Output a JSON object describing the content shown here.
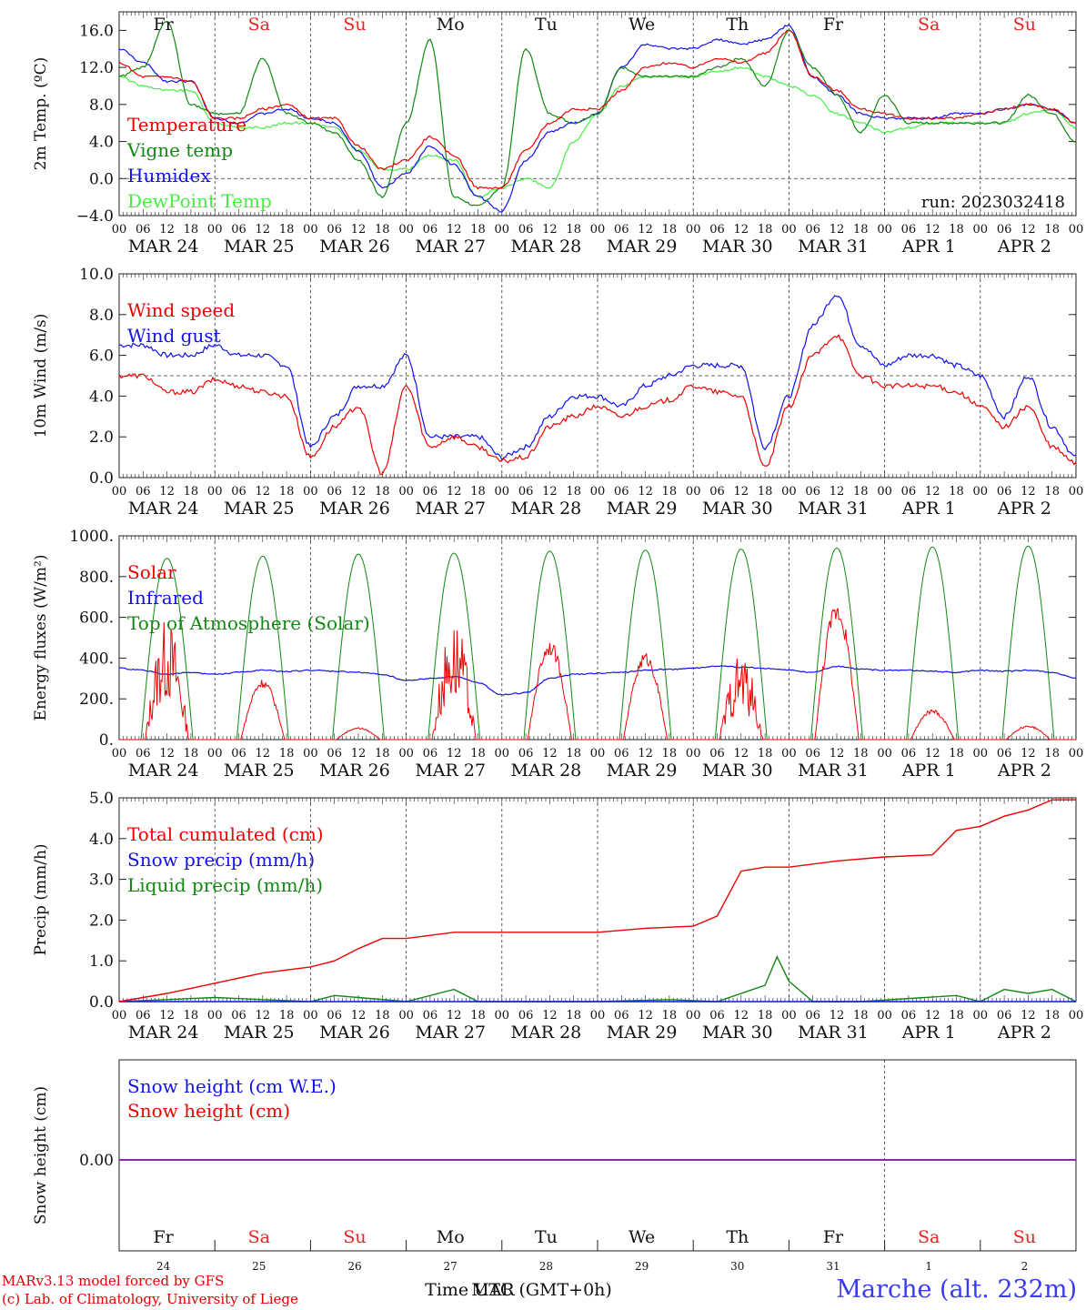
{
  "meteogram": {
    "credits": [
      "MARv3.13 model forced by GFS",
      "(c) Lab. of Climatology, University of Liege"
    ],
    "station": "Marche (alt. 232m)",
    "x_axis_label": "Time UTC (GMT+0h)",
    "overlap_label": "MAR",
    "run": "run: 2023032418",
    "day_names": [
      "Fr",
      "Sa",
      "Su",
      "Mo",
      "Tu",
      "We",
      "Th",
      "Fr",
      "Sa",
      "Su"
    ],
    "weekend_flags": [
      false,
      true,
      true,
      false,
      false,
      false,
      false,
      false,
      true,
      true
    ],
    "dates": [
      "MAR 24",
      "MAR 25",
      "MAR 26",
      "MAR 27",
      "MAR 28",
      "MAR 29",
      "MAR 30",
      "MAR 31",
      "APR  1",
      "APR  2"
    ],
    "day_numbers": [
      "24",
      "25",
      "26",
      "27",
      "28",
      "29",
      "30",
      "31",
      "1",
      "2"
    ],
    "hour_ticks": [
      "00",
      "06",
      "12",
      "18"
    ]
  },
  "colors": {
    "red": "#ee0000",
    "green": "#118811",
    "blue": "#1111ee",
    "lightgreen": "#44ee44",
    "purple": "#8822aa"
  },
  "chart_data": [
    {
      "type": "line",
      "ylabel": "2m Temp. (ºC)",
      "ylim": [
        -4,
        18
      ],
      "yticks": [
        "−4.0",
        "0.0",
        "4.0",
        "8.0",
        "12.0",
        "16.0"
      ],
      "ytick_values": [
        -4,
        0,
        4,
        8,
        12,
        16
      ],
      "ref_line": 0,
      "x_unit": "hours since 2023-03-24 00 UTC",
      "series": [
        {
          "name": "DewPoint Temp",
          "color": "lightgreen",
          "x": [
            0,
            6,
            12,
            18,
            24,
            30,
            36,
            42,
            48,
            54,
            60,
            66,
            72,
            78,
            84,
            90,
            96,
            102,
            108,
            114,
            120,
            126,
            132,
            138,
            144,
            150,
            156,
            162,
            168,
            174,
            180,
            186,
            192,
            198,
            204,
            210,
            216,
            222,
            228,
            234,
            240
          ],
          "y": [
            11,
            10,
            9.5,
            9.5,
            6,
            5.5,
            5.5,
            6,
            6,
            5.5,
            3,
            1,
            1,
            2.5,
            2,
            -2,
            -1,
            0,
            -1,
            4,
            7,
            10,
            11,
            11,
            11,
            11.5,
            12,
            11,
            10,
            9,
            7,
            6,
            5,
            5.5,
            6,
            6,
            6,
            6,
            7,
            7.5,
            5.5
          ]
        },
        {
          "name": "Humidex",
          "color": "blue",
          "x": [
            0,
            6,
            12,
            18,
            24,
            30,
            36,
            42,
            48,
            54,
            60,
            66,
            72,
            78,
            84,
            90,
            96,
            102,
            108,
            114,
            120,
            126,
            132,
            138,
            144,
            150,
            156,
            162,
            168,
            174,
            180,
            186,
            192,
            198,
            204,
            210,
            216,
            222,
            228,
            234,
            240
          ],
          "y": [
            14,
            12.5,
            10.5,
            10.5,
            6.5,
            6,
            7,
            7.5,
            6.5,
            6,
            3,
            -1,
            0.5,
            3.5,
            1.5,
            -2,
            -3.5,
            2,
            5,
            6,
            7,
            12,
            14.5,
            14,
            14,
            15,
            14.5,
            15,
            16.5,
            11,
            9,
            7,
            6.5,
            6.5,
            6.5,
            7,
            7,
            7.5,
            8,
            7.5,
            6
          ]
        },
        {
          "name": "Vigne temp",
          "color": "green",
          "x": [
            0,
            6,
            12,
            18,
            24,
            30,
            36,
            42,
            48,
            54,
            60,
            66,
            72,
            78,
            84,
            90,
            96,
            102,
            108,
            114,
            120,
            126,
            132,
            138,
            144,
            150,
            156,
            162,
            168,
            174,
            180,
            186,
            192,
            198,
            204,
            210,
            216,
            222,
            228,
            234,
            240
          ],
          "y": [
            11,
            12,
            17,
            8,
            7,
            7,
            13,
            7,
            6,
            5,
            2,
            -2,
            6,
            15,
            -2,
            -3,
            -1,
            14,
            7,
            6,
            7,
            12,
            11,
            11,
            11,
            12,
            13,
            10,
            16,
            12,
            9,
            5,
            9,
            6,
            6,
            6,
            6,
            6,
            9,
            7,
            4
          ]
        },
        {
          "name": "Temperature",
          "color": "red",
          "x": [
            0,
            6,
            12,
            18,
            24,
            30,
            36,
            42,
            48,
            54,
            60,
            66,
            72,
            78,
            84,
            90,
            96,
            102,
            108,
            114,
            120,
            126,
            132,
            138,
            144,
            150,
            156,
            162,
            168,
            174,
            180,
            186,
            192,
            198,
            204,
            210,
            216,
            222,
            228,
            234,
            240
          ],
          "y": [
            12.5,
            11,
            11,
            10.5,
            6.5,
            6.5,
            7.5,
            8,
            6.5,
            6.5,
            3.5,
            1,
            2,
            4.5,
            2.5,
            -1,
            -1,
            3,
            6,
            7.5,
            7.5,
            9.5,
            12,
            12.5,
            12,
            13,
            12.5,
            13.5,
            16,
            11,
            9.5,
            7.5,
            7,
            6.5,
            6.5,
            6.5,
            7,
            7.5,
            8,
            7.5,
            6
          ]
        }
      ]
    },
    {
      "type": "line",
      "ylabel": "10m Wind (m/s)",
      "ylim": [
        0,
        10
      ],
      "yticks": [
        "0.0",
        "2.0",
        "4.0",
        "6.0",
        "8.0",
        "10.0"
      ],
      "ytick_values": [
        0,
        2,
        4,
        6,
        8,
        10
      ],
      "ref_line": 5,
      "x_unit": "hours since 2023-03-24 00 UTC",
      "series": [
        {
          "name": "Wind gust",
          "color": "blue",
          "x": [
            0,
            6,
            12,
            18,
            24,
            30,
            36,
            42,
            48,
            54,
            60,
            66,
            72,
            78,
            84,
            90,
            96,
            102,
            108,
            114,
            120,
            126,
            132,
            138,
            144,
            150,
            156,
            162,
            168,
            174,
            180,
            186,
            192,
            198,
            204,
            210,
            216,
            222,
            228,
            234,
            240
          ],
          "y": [
            6.5,
            6.5,
            6,
            6,
            6.5,
            6,
            6,
            5.5,
            1.5,
            3,
            4.5,
            4.5,
            6,
            2,
            2,
            2,
            1,
            1.5,
            3,
            4,
            4,
            3.5,
            4.5,
            5,
            5.5,
            5.5,
            5.5,
            1.5,
            4,
            7.5,
            9,
            6.5,
            5.5,
            6,
            6,
            5.5,
            5,
            3,
            5,
            2.5,
            1
          ]
        },
        {
          "name": "Wind speed",
          "color": "red",
          "x": [
            0,
            6,
            12,
            18,
            24,
            30,
            36,
            42,
            48,
            54,
            60,
            66,
            72,
            78,
            84,
            90,
            96,
            102,
            108,
            114,
            120,
            126,
            132,
            138,
            144,
            150,
            156,
            162,
            168,
            174,
            180,
            186,
            192,
            198,
            204,
            210,
            216,
            222,
            228,
            234,
            240
          ],
          "y": [
            5,
            5,
            4.2,
            4.2,
            4.8,
            4.5,
            4.2,
            4,
            1,
            2.5,
            3.5,
            0.2,
            4.5,
            1.5,
            2,
            1.5,
            0.8,
            1,
            2.5,
            3,
            3.5,
            3,
            3.5,
            3.8,
            4.5,
            4.2,
            4,
            0.5,
            3.5,
            6,
            7,
            5,
            4.5,
            4.5,
            4.5,
            4.2,
            3.5,
            2.5,
            3.5,
            1.5,
            0.7
          ]
        }
      ]
    },
    {
      "type": "line",
      "ylabel": "Energy fluxes (W/m²)",
      "ylim": [
        0,
        1000
      ],
      "yticks": [
        "0.",
        "200.",
        "400.",
        "600.",
        "800.",
        "1000."
      ],
      "ytick_values": [
        0,
        200,
        400,
        600,
        800,
        1000
      ],
      "x_unit": "hours since 2023-03-24 00 UTC",
      "series": [
        {
          "name": "Top of Atmosphere (Solar)",
          "color": "green",
          "daily_peaks": [
            890,
            900,
            910,
            915,
            925,
            930,
            935,
            940,
            945,
            950
          ]
        },
        {
          "name": "Infrared",
          "color": "blue",
          "x": [
            0,
            6,
            12,
            18,
            24,
            30,
            36,
            42,
            48,
            54,
            60,
            66,
            72,
            78,
            84,
            90,
            96,
            102,
            108,
            114,
            120,
            126,
            132,
            138,
            144,
            150,
            156,
            162,
            168,
            174,
            180,
            186,
            192,
            198,
            204,
            210,
            216,
            222,
            228,
            234,
            240
          ],
          "y": [
            350,
            340,
            320,
            330,
            320,
            330,
            340,
            335,
            340,
            335,
            330,
            320,
            290,
            300,
            310,
            280,
            220,
            230,
            300,
            320,
            325,
            330,
            340,
            345,
            350,
            360,
            355,
            350,
            340,
            330,
            360,
            345,
            340,
            340,
            335,
            330,
            340,
            335,
            340,
            330,
            300
          ]
        },
        {
          "name": "Solar",
          "daily_peaks": [
            600,
            300,
            60,
            600,
            490,
            430,
            430,
            680,
            150,
            70
          ],
          "color": "red"
        }
      ]
    },
    {
      "type": "line",
      "ylabel": "Precip (mm/h)",
      "ylim": [
        0,
        5
      ],
      "yticks": [
        "0.0",
        "1.0",
        "2.0",
        "3.0",
        "4.0",
        "5.0"
      ],
      "ytick_values": [
        0,
        1,
        2,
        3,
        4,
        5
      ],
      "x_unit": "hours since 2023-03-24 00 UTC",
      "series": [
        {
          "name": "Liquid precip (mm/h)",
          "color": "green",
          "x": [
            0,
            12,
            24,
            36,
            48,
            54,
            60,
            72,
            84,
            90,
            96,
            120,
            138,
            150,
            162,
            165,
            168,
            174,
            186,
            210,
            216,
            222,
            228,
            234,
            240
          ],
          "y": [
            0,
            0.05,
            0.1,
            0.05,
            0,
            0.15,
            0.1,
            0,
            0.3,
            0,
            0,
            0,
            0.05,
            0,
            0.4,
            1.1,
            0.5,
            0,
            0,
            0.15,
            0,
            0.3,
            0.2,
            0.3,
            0
          ]
        },
        {
          "name": "Snow precip (mm/h)",
          "color": "blue",
          "x": [
            0,
            240
          ],
          "y": [
            0,
            0
          ]
        },
        {
          "name": "Total cumulated (cm)",
          "color": "red",
          "x": [
            0,
            12,
            24,
            36,
            48,
            54,
            60,
            66,
            72,
            84,
            96,
            120,
            132,
            144,
            150,
            156,
            162,
            164,
            166,
            168,
            180,
            192,
            204,
            210,
            216,
            222,
            228,
            234,
            240
          ],
          "y": [
            0,
            0.2,
            0.45,
            0.7,
            0.85,
            1,
            1.3,
            1.55,
            1.55,
            1.7,
            1.7,
            1.7,
            1.8,
            1.85,
            2.1,
            3.2,
            3.3,
            3.3,
            3.3,
            3.3,
            3.45,
            3.55,
            3.6,
            4.2,
            4.3,
            4.55,
            4.7,
            4.95,
            4.95
          ]
        }
      ]
    },
    {
      "type": "line",
      "ylabel": "Snow height (cm)",
      "yticks": [
        "0.00"
      ],
      "ytick_values": [
        0
      ],
      "x_unit": "hours since 2023-03-24 00 UTC",
      "series": [
        {
          "name": "Snow height (cm)",
          "color": "red",
          "x": [
            0,
            240
          ],
          "y": [
            0,
            0
          ]
        },
        {
          "name": "Snow height (cm W.E.)",
          "color": "blue",
          "x": [
            0,
            240
          ],
          "y": [
            0,
            0
          ]
        }
      ]
    }
  ]
}
